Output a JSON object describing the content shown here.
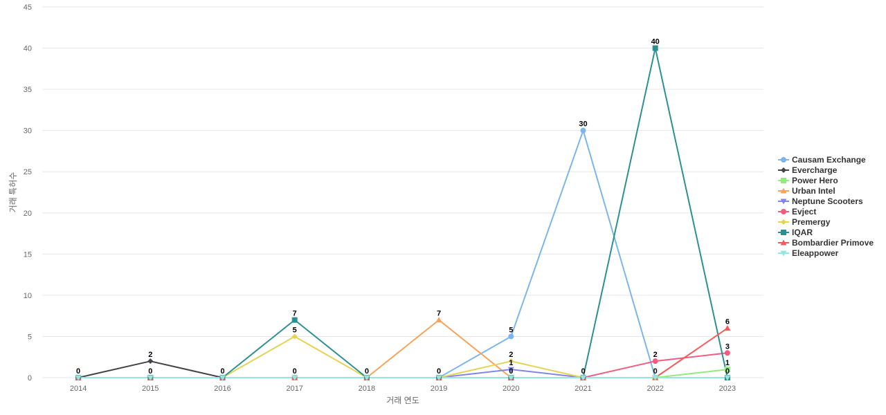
{
  "chart_data": {
    "type": "line",
    "title": "",
    "xlabel": "거래 연도",
    "ylabel": "거래 특허수",
    "ylim": [
      0,
      45
    ],
    "yticks": [
      0,
      5,
      10,
      15,
      20,
      25,
      30,
      35,
      40,
      45
    ],
    "categories": [
      "2014",
      "2015",
      "2016",
      "2017",
      "2018",
      "2019",
      "2020",
      "2021",
      "2022",
      "2023"
    ],
    "grid": true,
    "legend_position": "right",
    "series": [
      {
        "name": "Causam Exchange",
        "color": "#7cb5ec",
        "marker": "circle",
        "values": [
          0,
          0,
          0,
          0,
          0,
          0,
          5,
          30,
          0,
          0
        ]
      },
      {
        "name": "Evercharge",
        "color": "#434348",
        "marker": "diamond",
        "values": [
          0,
          2,
          0,
          0,
          0,
          0,
          0,
          0,
          0,
          0
        ]
      },
      {
        "name": "Power Hero",
        "color": "#90ed7d",
        "marker": "square",
        "values": [
          0,
          0,
          0,
          0,
          0,
          0,
          0,
          0,
          0,
          1
        ]
      },
      {
        "name": "Urban Intel",
        "color": "#f7a35c",
        "marker": "triangle",
        "values": [
          0,
          0,
          0,
          0,
          0,
          7,
          0,
          0,
          0,
          0
        ]
      },
      {
        "name": "Neptune Scooters",
        "color": "#8085e9",
        "marker": "triangle-down",
        "values": [
          0,
          0,
          0,
          0,
          0,
          0,
          1,
          0,
          0,
          0
        ]
      },
      {
        "name": "Evject",
        "color": "#f15c80",
        "marker": "circle",
        "values": [
          0,
          0,
          0,
          0,
          0,
          0,
          0,
          0,
          2,
          3
        ]
      },
      {
        "name": "Premergy",
        "color": "#e4d354",
        "marker": "diamond",
        "values": [
          0,
          0,
          0,
          5,
          0,
          0,
          2,
          0,
          0,
          0
        ]
      },
      {
        "name": "IQAR",
        "color": "#2b908f",
        "marker": "square",
        "values": [
          0,
          0,
          0,
          7,
          0,
          0,
          0,
          0,
          40,
          0
        ]
      },
      {
        "name": "Bombardier Primove",
        "color": "#f45b5b",
        "marker": "triangle",
        "values": [
          0,
          0,
          0,
          0,
          0,
          0,
          0,
          0,
          0,
          6
        ]
      },
      {
        "name": "Eleappower",
        "color": "#91e8e1",
        "marker": "triangle-down",
        "values": [
          0,
          0,
          0,
          0,
          0,
          0,
          0,
          0,
          0,
          0
        ]
      }
    ],
    "data_labels": [
      {
        "x": "2014",
        "y": 0,
        "text": "0"
      },
      {
        "x": "2015",
        "y": 2,
        "text": "2"
      },
      {
        "x": "2015",
        "y": 0,
        "text": "0"
      },
      {
        "x": "2016",
        "y": 0,
        "text": "0"
      },
      {
        "x": "2017",
        "y": 7,
        "text": "7"
      },
      {
        "x": "2017",
        "y": 5,
        "text": "5"
      },
      {
        "x": "2017",
        "y": 0,
        "text": "0"
      },
      {
        "x": "2018",
        "y": 0,
        "text": "0"
      },
      {
        "x": "2019",
        "y": 7,
        "text": "7"
      },
      {
        "x": "2019",
        "y": 0,
        "text": "0"
      },
      {
        "x": "2020",
        "y": 5,
        "text": "5"
      },
      {
        "x": "2020",
        "y": 2,
        "text": "2"
      },
      {
        "x": "2020",
        "y": 1,
        "text": "1"
      },
      {
        "x": "2020",
        "y": 0,
        "text": "0"
      },
      {
        "x": "2021",
        "y": 30,
        "text": "30"
      },
      {
        "x": "2021",
        "y": 0,
        "text": "0"
      },
      {
        "x": "2022",
        "y": 40,
        "text": "40"
      },
      {
        "x": "2022",
        "y": 2,
        "text": "2"
      },
      {
        "x": "2022",
        "y": 0,
        "text": "0"
      },
      {
        "x": "2023",
        "y": 6,
        "text": "6"
      },
      {
        "x": "2023",
        "y": 3,
        "text": "3"
      },
      {
        "x": "2023",
        "y": 1,
        "text": "1"
      },
      {
        "x": "2023",
        "y": 0,
        "text": "0"
      }
    ]
  }
}
